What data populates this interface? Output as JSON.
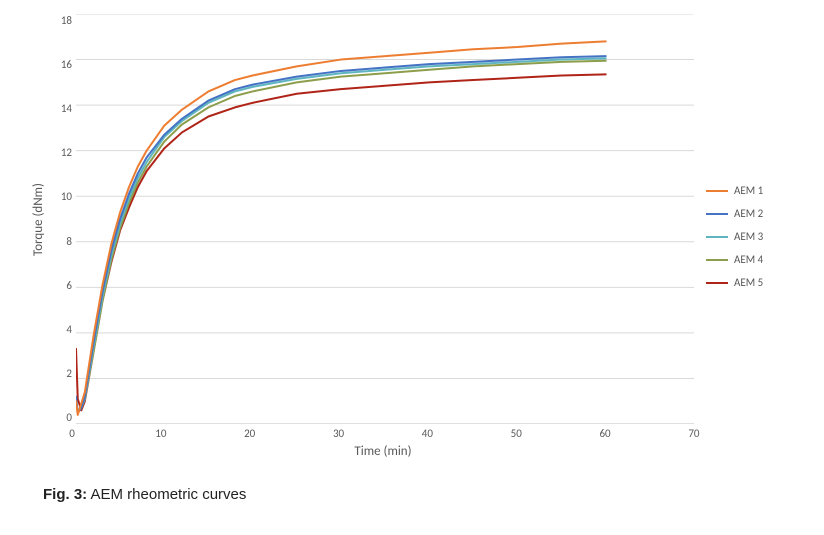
{
  "chart": {
    "type": "line",
    "xlabel": "Time (min)",
    "ylabel": "Torque (dNm)",
    "label_fontsize": 13,
    "tick_fontsize": 11,
    "xlim": [
      0,
      70
    ],
    "ylim": [
      0,
      18
    ],
    "xtick_step": 10,
    "ytick_step": 2,
    "grid_color": "#d9d9d9",
    "axis_color": "#bfbfbf",
    "background_color": "#ffffff",
    "line_width": 2,
    "series": [
      {
        "name": "AEM 1",
        "color": "#ed7d31",
        "x": [
          0,
          0.2,
          0.6,
          1,
          2,
          3,
          4,
          5,
          6,
          7,
          8,
          10,
          12,
          15,
          18,
          20,
          25,
          30,
          35,
          40,
          45,
          50,
          55,
          60
        ],
        "y": [
          1.0,
          0.4,
          0.9,
          1.4,
          3.9,
          6.1,
          7.9,
          9.3,
          10.4,
          11.3,
          12.0,
          13.1,
          13.8,
          14.6,
          15.1,
          15.3,
          15.7,
          16.0,
          16.15,
          16.3,
          16.45,
          16.55,
          16.7,
          16.8
        ]
      },
      {
        "name": "AEM 2",
        "color": "#4472c4",
        "x": [
          0,
          0.2,
          0.6,
          1,
          2,
          3,
          4,
          5,
          6,
          7,
          8,
          10,
          12,
          15,
          18,
          20,
          25,
          30,
          35,
          40,
          45,
          50,
          55,
          60
        ],
        "y": [
          1.2,
          0.5,
          0.7,
          1.2,
          3.6,
          5.8,
          7.6,
          9.0,
          10.1,
          11.0,
          11.7,
          12.7,
          13.4,
          14.2,
          14.7,
          14.9,
          15.25,
          15.5,
          15.65,
          15.8,
          15.9,
          16.0,
          16.1,
          16.15
        ]
      },
      {
        "name": "AEM 3",
        "color": "#5eb5c0",
        "x": [
          0,
          0.2,
          0.6,
          1,
          2,
          3,
          4,
          5,
          6,
          7,
          8,
          10,
          12,
          15,
          18,
          20,
          25,
          30,
          35,
          40,
          45,
          50,
          55,
          60
        ],
        "y": [
          1.0,
          0.5,
          0.7,
          1.1,
          3.4,
          5.6,
          7.4,
          8.8,
          9.9,
          10.8,
          11.5,
          12.6,
          13.3,
          14.1,
          14.6,
          14.8,
          15.15,
          15.4,
          15.55,
          15.7,
          15.8,
          15.9,
          16.0,
          16.05
        ]
      },
      {
        "name": "AEM 4",
        "color": "#8c9e4b",
        "x": [
          0,
          0.2,
          0.6,
          1,
          2,
          3,
          4,
          5,
          6,
          7,
          8,
          10,
          12,
          15,
          18,
          20,
          25,
          30,
          35,
          40,
          45,
          50,
          55,
          60
        ],
        "y": [
          1.1,
          0.5,
          0.7,
          1.1,
          3.2,
          5.4,
          7.2,
          8.6,
          9.7,
          10.6,
          11.3,
          12.4,
          13.15,
          13.9,
          14.4,
          14.6,
          15.0,
          15.25,
          15.4,
          15.55,
          15.7,
          15.8,
          15.9,
          15.95
        ]
      },
      {
        "name": "AEM 5",
        "color": "#b02418",
        "x": [
          0,
          0.2,
          0.6,
          1,
          2,
          3,
          4,
          5,
          6,
          7,
          8,
          10,
          12,
          15,
          18,
          20,
          25,
          30,
          35,
          40,
          45,
          50,
          55,
          60
        ],
        "y": [
          3.3,
          1.1,
          0.6,
          1.0,
          3.2,
          5.4,
          7.1,
          8.5,
          9.5,
          10.4,
          11.1,
          12.1,
          12.8,
          13.5,
          13.9,
          14.1,
          14.5,
          14.7,
          14.85,
          15.0,
          15.1,
          15.2,
          15.3,
          15.35
        ]
      }
    ]
  },
  "caption": {
    "fig_label": "Fig. 3:",
    "text": " AEM rheometric curves"
  }
}
